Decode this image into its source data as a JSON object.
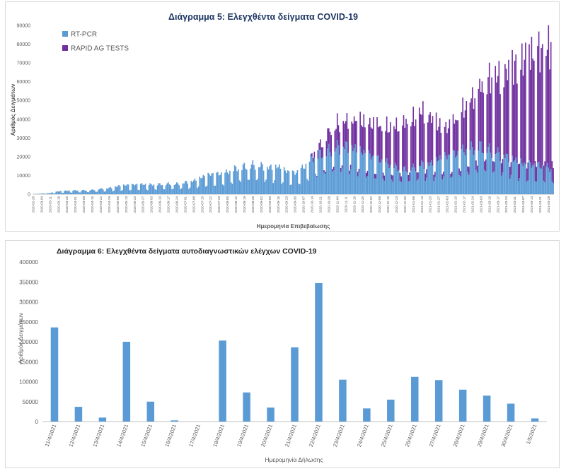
{
  "chart_data": [
    {
      "type": "bar",
      "stacked": true,
      "title": "Διάγραμμα 5: Ελεγχθέντα δείγματα COVID-19",
      "xlabel": "Ημερομηνία Επιβεβαίωσης",
      "ylabel": "Αριθμός Δειγμάτων",
      "ylim": [
        0,
        90000
      ],
      "yticks": [
        0,
        10000,
        20000,
        30000,
        40000,
        50000,
        60000,
        70000,
        80000,
        90000
      ],
      "grid": false,
      "legend_position": "top-left",
      "x_start": "2020-02-26",
      "x_end": "2021-05-02",
      "x_tick_labels": [
        "2020-02-26",
        "2020-03-04",
        "2020-03-11",
        "2020-03-18",
        "2020-03-25",
        "2020-04-01",
        "2020-04-08",
        "2020-04-15",
        "2020-04-22",
        "2020-04-29",
        "2020-05-06",
        "2020-05-13",
        "2020-05-20",
        "2020-05-27",
        "2020-06-03",
        "2020-06-10",
        "2020-06-17",
        "2020-06-24",
        "2020-07-01",
        "2020-07-08",
        "2020-07-15",
        "2020-07-22",
        "2020-07-29",
        "2020-08-05",
        "2020-08-12",
        "2020-08-19",
        "2020-08-26",
        "2020-09-02",
        "2020-09-09",
        "2020-09-16",
        "2020-09-23",
        "2020-09-30",
        "2020-10-07",
        "2020-10-14",
        "2020-10-21",
        "2020-10-28",
        "2020-11-04",
        "2020-11-11",
        "2020-11-18",
        "2020-11-25",
        "2020-12-02",
        "2020-12-09",
        "2020-12-16",
        "2020-12-23",
        "2020-12-30",
        "2021-01-06",
        "2021-01-13",
        "2021-01-20",
        "2021-01-27",
        "2021-02-03",
        "2021-02-10",
        "2021-02-17",
        "2021-02-24",
        "2021-03-03",
        "2021-03-10",
        "2021-03-17",
        "2021-03-24",
        "2021-03-31",
        "2021-04-07",
        "2021-04-14",
        "2021-04-21",
        "2021-04-28"
      ],
      "series": [
        {
          "name": "RT-PCR",
          "color": "#5b9bd5",
          "weekly_trend": [
            0,
            300,
            600,
            1500,
            1800,
            2000,
            2000,
            2200,
            2800,
            3200,
            4200,
            4800,
            5000,
            5200,
            5000,
            5200,
            5400,
            5400,
            6200,
            7000,
            9000,
            10500,
            10500,
            11500,
            13500,
            14500,
            15500,
            15000,
            14000,
            14500,
            12000,
            11000,
            14000,
            19000,
            21000,
            23000,
            25000,
            25500,
            24000,
            22000,
            20000,
            18000,
            16000,
            14000,
            13000,
            14000,
            16000,
            16000,
            18500,
            20000,
            21000,
            23000,
            24000,
            25000,
            23500,
            22000,
            20000,
            18000,
            16000,
            15500,
            15000,
            14000,
            12000
          ],
          "weekend_factor": 0.5
        },
        {
          "name": "RAPID AG TESTS",
          "color": "#7030a0",
          "start": "2020-10-14",
          "weekly_trend": [
            2000,
            5000,
            10000,
            12000,
            13000,
            15000,
            16000,
            17000,
            18000,
            19000,
            22000,
            25000,
            26000,
            28000,
            25000,
            18000,
            15000,
            18000,
            22000,
            27000,
            32000,
            38000,
            41000,
            45000,
            50000,
            55000,
            60000,
            62000,
            65000
          ],
          "weekend_factor": 0.15,
          "peak": 78000
        }
      ]
    },
    {
      "type": "bar",
      "title": "Διάγραμμα 6: Ελεγχθέντα δείγματα αυτοδιαγνωστικών ελέγχων COVID-19",
      "xlabel": "Ημερομηνία Δήλωσης",
      "ylabel": "Αριθμός Δειγμάτων",
      "ylim": [
        0,
        400000
      ],
      "yticks": [
        0,
        50000,
        100000,
        150000,
        200000,
        250000,
        300000,
        350000,
        400000
      ],
      "grid": false,
      "color": "#5b9bd5",
      "categories": [
        "11/4/2021",
        "12/4/2021",
        "13/4/2021",
        "14/4/2021",
        "15/4/2021",
        "16/4/2021",
        "17/4/2021",
        "18/4/2021",
        "19/4/2021",
        "20/4/2021",
        "21/4/2021",
        "22/4/2021",
        "23/4/2021",
        "24/4/2021",
        "25/4/2021",
        "26/4/2021",
        "27/4/2021",
        "28/4/2021",
        "29/4/2021",
        "30/4/2021",
        "1/5/2021"
      ],
      "values": [
        236000,
        37000,
        10000,
        200000,
        50000,
        3000,
        0,
        203000,
        73000,
        35000,
        186000,
        347000,
        105000,
        33000,
        55000,
        112000,
        104000,
        80000,
        65000,
        45000,
        8000
      ]
    }
  ]
}
